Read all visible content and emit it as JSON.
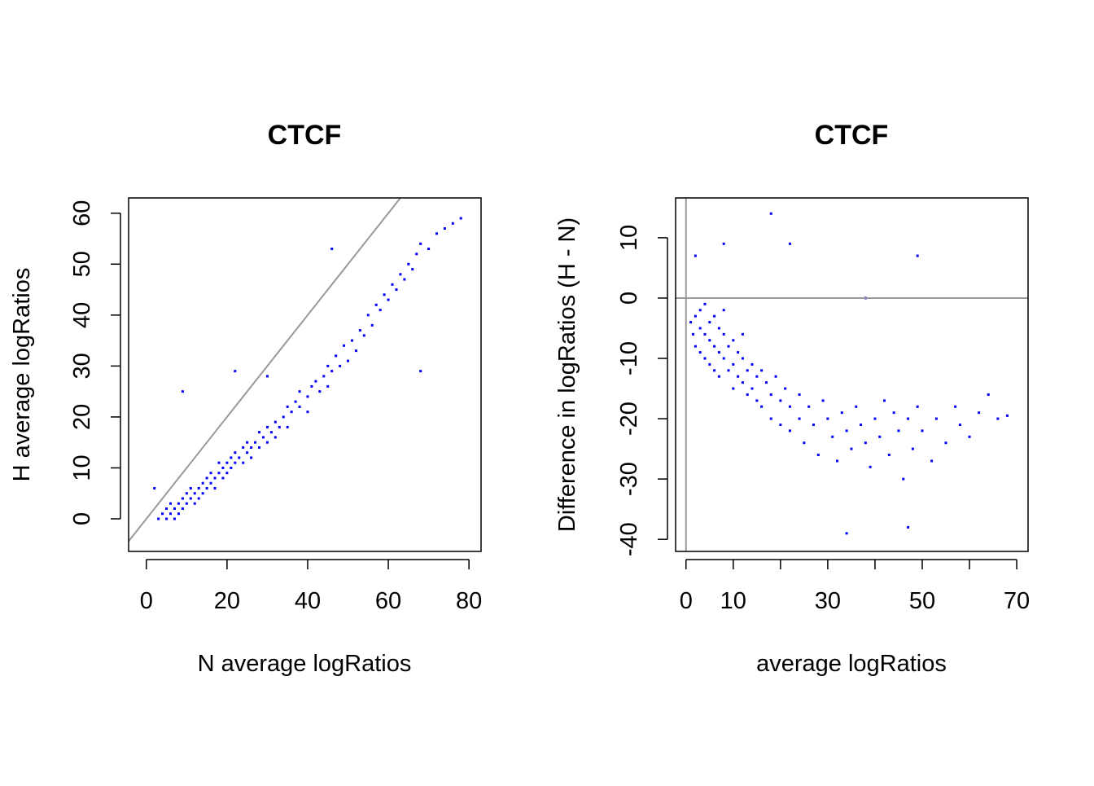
{
  "chart_data": [
    {
      "type": "scatter",
      "title": "CTCF",
      "xlabel": "N average logRatios",
      "ylabel": "H average logRatios",
      "xlim": [
        -4.4,
        83
      ],
      "ylim": [
        -6.4,
        63
      ],
      "xticks": [
        0,
        20,
        40,
        60,
        80
      ],
      "xtick_labels": [
        "0",
        "20",
        "40",
        "60",
        "80"
      ],
      "yticks": [
        0,
        10,
        20,
        30,
        40,
        50,
        60
      ],
      "ytick_labels": [
        "0",
        "10",
        "20",
        "30",
        "40",
        "50",
        "60"
      ],
      "grid": false,
      "point_color": "#0000ff",
      "reference_lines": [
        {
          "type": "abline",
          "intercept": 0,
          "slope": 1,
          "color": "#999999"
        }
      ],
      "points": [
        [
          3,
          0
        ],
        [
          4,
          1
        ],
        [
          5,
          0
        ],
        [
          5,
          2
        ],
        [
          6,
          1
        ],
        [
          6,
          3
        ],
        [
          7,
          2
        ],
        [
          7,
          0
        ],
        [
          8,
          3
        ],
        [
          8,
          1
        ],
        [
          9,
          4
        ],
        [
          9,
          2
        ],
        [
          10,
          3
        ],
        [
          10,
          5
        ],
        [
          11,
          4
        ],
        [
          11,
          6
        ],
        [
          12,
          5
        ],
        [
          12,
          3
        ],
        [
          13,
          6
        ],
        [
          13,
          4
        ],
        [
          14,
          7
        ],
        [
          14,
          5
        ],
        [
          15,
          6
        ],
        [
          15,
          8
        ],
        [
          16,
          7
        ],
        [
          16,
          9
        ],
        [
          17,
          8
        ],
        [
          17,
          6
        ],
        [
          18,
          9
        ],
        [
          18,
          11
        ],
        [
          19,
          10
        ],
        [
          19,
          8
        ],
        [
          20,
          11
        ],
        [
          20,
          9
        ],
        [
          21,
          10
        ],
        [
          21,
          12
        ],
        [
          22,
          13
        ],
        [
          22,
          11
        ],
        [
          23,
          12
        ],
        [
          24,
          14
        ],
        [
          24,
          11
        ],
        [
          25,
          13
        ],
        [
          25,
          15
        ],
        [
          26,
          14
        ],
        [
          26,
          12
        ],
        [
          27,
          15
        ],
        [
          28,
          17
        ],
        [
          28,
          14
        ],
        [
          29,
          16
        ],
        [
          30,
          18
        ],
        [
          30,
          15
        ],
        [
          31,
          17
        ],
        [
          32,
          19
        ],
        [
          32,
          16
        ],
        [
          33,
          18
        ],
        [
          34,
          20
        ],
        [
          35,
          22
        ],
        [
          35,
          18
        ],
        [
          36,
          21
        ],
        [
          37,
          23
        ],
        [
          38,
          22
        ],
        [
          38,
          25
        ],
        [
          40,
          24
        ],
        [
          40,
          21
        ],
        [
          41,
          26
        ],
        [
          42,
          27
        ],
        [
          43,
          25
        ],
        [
          44,
          28
        ],
        [
          45,
          30
        ],
        [
          45,
          26
        ],
        [
          46,
          29
        ],
        [
          47,
          32
        ],
        [
          48,
          30
        ],
        [
          49,
          34
        ],
        [
          50,
          31
        ],
        [
          51,
          35
        ],
        [
          52,
          33
        ],
        [
          53,
          37
        ],
        [
          54,
          36
        ],
        [
          55,
          40
        ],
        [
          56,
          38
        ],
        [
          57,
          42
        ],
        [
          58,
          41
        ],
        [
          59,
          44
        ],
        [
          60,
          43
        ],
        [
          61,
          46
        ],
        [
          62,
          45
        ],
        [
          63,
          48
        ],
        [
          64,
          47
        ],
        [
          65,
          50
        ],
        [
          66,
          49
        ],
        [
          67,
          52
        ],
        [
          68,
          54
        ],
        [
          70,
          53
        ],
        [
          72,
          56
        ],
        [
          74,
          57
        ],
        [
          76,
          58
        ],
        [
          78,
          59
        ],
        [
          9,
          25
        ],
        [
          46,
          53
        ],
        [
          22,
          29
        ],
        [
          30,
          28
        ],
        [
          68,
          29
        ],
        [
          2,
          6
        ]
      ]
    },
    {
      "type": "scatter",
      "title": "CTCF",
      "xlabel": "average logRatios",
      "ylabel": "Difference in logRatios (H - N)",
      "xlim": [
        -2.2,
        72.4
      ],
      "ylim": [
        -42,
        16.6
      ],
      "xticks": [
        0,
        10,
        20,
        30,
        40,
        50,
        60,
        70
      ],
      "xtick_labels": [
        "0",
        "10",
        "",
        "30",
        "",
        "50",
        "",
        "70"
      ],
      "yticks": [
        -40,
        -30,
        -20,
        -10,
        0,
        10
      ],
      "ytick_labels": [
        "-40",
        "-30",
        "-20",
        "-10",
        "0",
        "10"
      ],
      "grid": false,
      "point_color": "#0000ff",
      "reference_lines": [
        {
          "type": "hline",
          "value": 0,
          "color": "#999999"
        },
        {
          "type": "vline",
          "value": 0,
          "color": "#999999"
        }
      ],
      "points": [
        [
          1,
          -4
        ],
        [
          1.5,
          -6
        ],
        [
          2,
          -3
        ],
        [
          2,
          -8
        ],
        [
          3,
          -5
        ],
        [
          3,
          -2
        ],
        [
          3,
          -9
        ],
        [
          4,
          -6
        ],
        [
          4,
          -1
        ],
        [
          4,
          -10
        ],
        [
          5,
          -4
        ],
        [
          5,
          -7
        ],
        [
          5,
          -11
        ],
        [
          6,
          -3
        ],
        [
          6,
          -8
        ],
        [
          6,
          -12
        ],
        [
          7,
          -5
        ],
        [
          7,
          -9
        ],
        [
          7,
          -13
        ],
        [
          8,
          -6
        ],
        [
          8,
          -10
        ],
        [
          8,
          -2
        ],
        [
          9,
          -8
        ],
        [
          9,
          -12
        ],
        [
          10,
          -7
        ],
        [
          10,
          -11
        ],
        [
          10,
          -15
        ],
        [
          11,
          -9
        ],
        [
          11,
          -13
        ],
        [
          12,
          -10
        ],
        [
          12,
          -14
        ],
        [
          12,
          -6
        ],
        [
          13,
          -12
        ],
        [
          13,
          -16
        ],
        [
          14,
          -11
        ],
        [
          14,
          -15
        ],
        [
          15,
          -13
        ],
        [
          15,
          -17
        ],
        [
          16,
          -12
        ],
        [
          16,
          -18
        ],
        [
          17,
          -14
        ],
        [
          18,
          -16
        ],
        [
          18,
          -20
        ],
        [
          19,
          -13
        ],
        [
          20,
          -17
        ],
        [
          20,
          -21
        ],
        [
          21,
          -15
        ],
        [
          22,
          -18
        ],
        [
          22,
          -22
        ],
        [
          24,
          -16
        ],
        [
          24,
          -20
        ],
        [
          25,
          -24
        ],
        [
          26,
          -18
        ],
        [
          27,
          -21
        ],
        [
          28,
          -26
        ],
        [
          29,
          -17
        ],
        [
          30,
          -20
        ],
        [
          31,
          -23
        ],
        [
          32,
          -27
        ],
        [
          33,
          -19
        ],
        [
          34,
          -22
        ],
        [
          35,
          -25
        ],
        [
          36,
          -18
        ],
        [
          37,
          -21
        ],
        [
          38,
          -24
        ],
        [
          39,
          -28
        ],
        [
          40,
          -20
        ],
        [
          41,
          -23
        ],
        [
          42,
          -17
        ],
        [
          43,
          -26
        ],
        [
          44,
          -19
        ],
        [
          45,
          -22
        ],
        [
          46,
          -30
        ],
        [
          47,
          -20
        ],
        [
          48,
          -25
        ],
        [
          49,
          -18
        ],
        [
          50,
          -22
        ],
        [
          52,
          -27
        ],
        [
          53,
          -20
        ],
        [
          55,
          -24
        ],
        [
          57,
          -18
        ],
        [
          58,
          -21
        ],
        [
          60,
          -23
        ],
        [
          62,
          -19
        ],
        [
          64,
          -16
        ],
        [
          66,
          -20
        ],
        [
          68,
          -19.5
        ],
        [
          18,
          14
        ],
        [
          49,
          7
        ],
        [
          34,
          -39
        ],
        [
          47,
          -38
        ],
        [
          2,
          7
        ],
        [
          8,
          9
        ],
        [
          22,
          9
        ],
        [
          38,
          0
        ]
      ]
    }
  ]
}
